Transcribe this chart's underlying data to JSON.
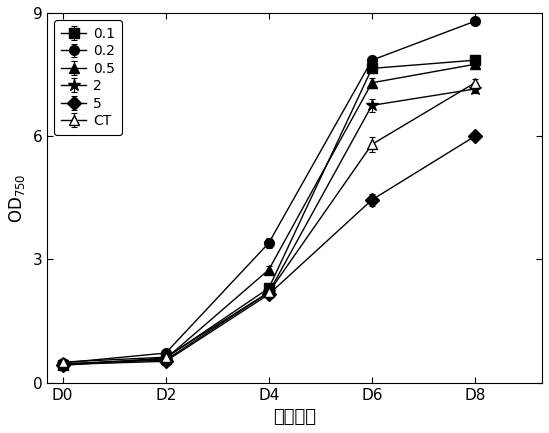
{
  "x_labels": [
    "D0",
    "D2",
    "D4",
    "D6",
    "D8"
  ],
  "x_ticks": [
    0,
    2,
    4,
    6,
    8
  ],
  "series": [
    {
      "label": "0.1",
      "marker": "s",
      "filled": true,
      "values": [
        0.42,
        0.6,
        2.3,
        7.65,
        7.85
      ],
      "errors": [
        0.03,
        0.05,
        0.1,
        0.12,
        0.1
      ]
    },
    {
      "label": "0.2",
      "marker": "o",
      "filled": true,
      "values": [
        0.48,
        0.72,
        3.4,
        7.85,
        8.8
      ],
      "errors": [
        0.03,
        0.06,
        0.12,
        0.1,
        0.1
      ]
    },
    {
      "label": "0.5",
      "marker": "^",
      "filled": true,
      "values": [
        0.45,
        0.58,
        2.75,
        7.3,
        7.75
      ],
      "errors": [
        0.03,
        0.05,
        0.1,
        0.12,
        0.1
      ]
    },
    {
      "label": "2",
      "marker": "*",
      "filled": true,
      "values": [
        0.46,
        0.55,
        2.2,
        6.75,
        7.15
      ],
      "errors": [
        0.03,
        0.04,
        0.08,
        0.15,
        0.1
      ]
    },
    {
      "label": "5",
      "marker": "D",
      "filled": true,
      "values": [
        0.44,
        0.52,
        2.15,
        4.45,
        6.0
      ],
      "errors": [
        0.03,
        0.04,
        0.08,
        0.15,
        0.1
      ]
    },
    {
      "label": "CT",
      "marker": "^",
      "filled": false,
      "values": [
        0.5,
        0.62,
        2.2,
        5.8,
        7.3
      ],
      "errors": [
        0.03,
        0.05,
        0.1,
        0.18,
        0.1
      ]
    }
  ],
  "xlabel": "培养时间",
  "ylabel": "OD$_{750}$",
  "ylim": [
    0,
    9
  ],
  "yticks": [
    0,
    3,
    6,
    9
  ],
  "xlim": [
    -0.3,
    9.3
  ],
  "legend_loc": "upper left",
  "figsize": [
    5.49,
    4.33
  ],
  "dpi": 100
}
